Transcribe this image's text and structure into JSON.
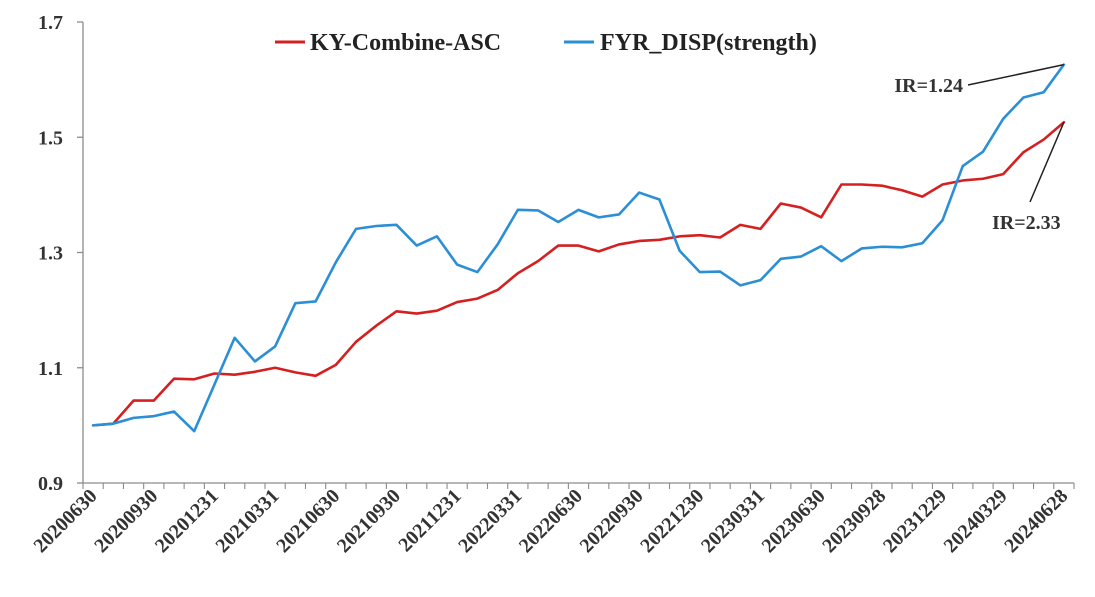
{
  "chart_data": {
    "type": "line",
    "title": "",
    "xlabel": "",
    "ylabel": "",
    "ylim": [
      0.9,
      1.7
    ],
    "yticks": [
      "0.9",
      "1.1",
      "1.3",
      "1.5",
      "1.7"
    ],
    "grid": false,
    "legend_position": "top-center",
    "x_tick_labels": [
      "20200630",
      "20200930",
      "20201231",
      "20210331",
      "20210630",
      "20210930",
      "20211231",
      "20220331",
      "20220630",
      "20220930",
      "20221230",
      "20230331",
      "20230630",
      "20230928",
      "20231229",
      "20240329",
      "20240628"
    ],
    "x": [
      "20200630",
      "20200731",
      "20200831",
      "20200930",
      "20201030",
      "20201130",
      "20201231",
      "20210129",
      "20210226",
      "20210331",
      "20210430",
      "20210531",
      "20210630",
      "20210730",
      "20210831",
      "20210930",
      "20211029",
      "20211130",
      "20211231",
      "20220128",
      "20220228",
      "20220331",
      "20220429",
      "20220531",
      "20220630",
      "20220729",
      "20220831",
      "20220930",
      "20221031",
      "20221130",
      "20221230",
      "20230131",
      "20230228",
      "20230331",
      "20230428",
      "20230531",
      "20230630",
      "20230731",
      "20230831",
      "20230928",
      "20231031",
      "20231130",
      "20231229",
      "20240131",
      "20240229",
      "20240329",
      "20240430",
      "20240531",
      "20240628"
    ],
    "series": [
      {
        "name": "KY-Combine-ASC",
        "color": "#d42020",
        "values": [
          1.0,
          1.003,
          1.043,
          1.043,
          1.081,
          1.08,
          1.09,
          1.088,
          1.093,
          1.1,
          1.092,
          1.086,
          1.105,
          1.145,
          1.173,
          1.198,
          1.194,
          1.199,
          1.214,
          1.22,
          1.235,
          1.264,
          1.285,
          1.312,
          1.312,
          1.302,
          1.314,
          1.32,
          1.322,
          1.328,
          1.33,
          1.326,
          1.348,
          1.341,
          1.385,
          1.378,
          1.361,
          1.418,
          1.418,
          1.416,
          1.408,
          1.397,
          1.418,
          1.425,
          1.428,
          1.436,
          1.474,
          1.496,
          1.526
        ]
      },
      {
        "name": "FYR_DISP(strength)",
        "color": "#2b8fd6",
        "values": [
          1.0,
          1.003,
          1.013,
          1.016,
          1.024,
          0.99,
          1.071,
          1.152,
          1.111,
          1.137,
          1.212,
          1.215,
          1.283,
          1.341,
          1.346,
          1.348,
          1.312,
          1.328,
          1.279,
          1.266,
          1.314,
          1.374,
          1.373,
          1.353,
          1.374,
          1.361,
          1.366,
          1.404,
          1.392,
          1.303,
          1.266,
          1.267,
          1.243,
          1.252,
          1.289,
          1.293,
          1.311,
          1.285,
          1.307,
          1.31,
          1.309,
          1.316,
          1.356,
          1.45,
          1.475,
          1.532,
          1.569,
          1.578,
          1.626
        ]
      }
    ],
    "annotations": [
      {
        "text": "IR=1.24",
        "series": 1
      },
      {
        "text": "IR=2.33",
        "series": 0
      }
    ]
  }
}
